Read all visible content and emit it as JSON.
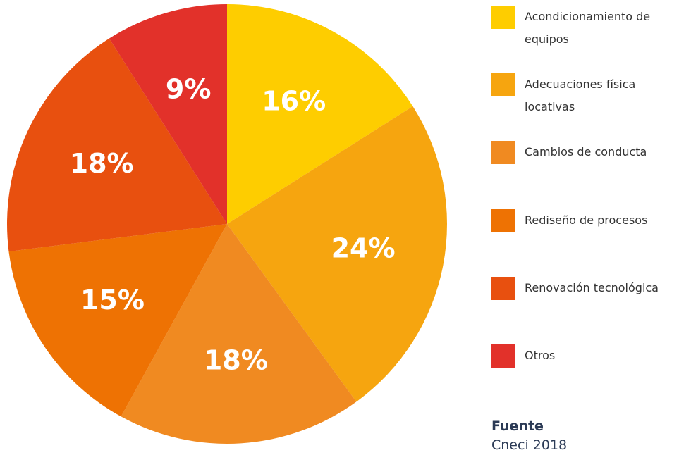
{
  "chart_data": {
    "type": "pie",
    "categories": [
      "Acondicionamiento de equipos",
      "Adecuaciones física locativas",
      "Cambios de conducta",
      "Rediseño de procesos",
      "Renovación tecnológica",
      "Otros"
    ],
    "values": [
      16,
      24,
      18,
      15,
      18,
      9
    ],
    "value_labels": [
      "16%",
      "24%",
      "18%",
      "15%",
      "18%",
      "9%"
    ],
    "colors": [
      "#fecd00",
      "#f6a50f",
      "#f08a21",
      "#ee7203",
      "#e8500f",
      "#e2312a"
    ]
  },
  "source": {
    "title": "Fuente",
    "text": "Cneci 2018"
  }
}
